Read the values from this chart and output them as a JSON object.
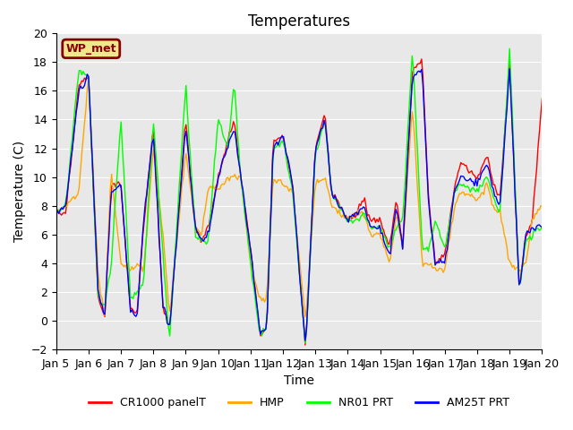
{
  "title": "Temperatures",
  "xlabel": "Time",
  "ylabel": "Temperature (C)",
  "ylim": [
    -2,
    20
  ],
  "yticks": [
    -2,
    0,
    2,
    4,
    6,
    8,
    10,
    12,
    14,
    16,
    18,
    20
  ],
  "xtick_labels": [
    "Jan 5",
    "Jan 6",
    "Jan 7",
    "Jan 8",
    "Jan 9",
    "Jan 10",
    "Jan 11",
    "Jan 12",
    "Jan 13",
    "Jan 14",
    "Jan 15",
    "Jan 16",
    "Jan 17",
    "Jan 18",
    "Jan 19",
    "Jan 20"
  ],
  "series_labels": [
    "CR1000 panelT",
    "HMP",
    "NR01 PRT",
    "AM25T PRT"
  ],
  "series_colors": [
    "red",
    "orange",
    "lime",
    "blue"
  ],
  "bg_color": "#e8e8e8",
  "annotation_text": "WP_met",
  "title_fontsize": 12,
  "axis_label_fontsize": 10,
  "tick_fontsize": 9,
  "n_days": 15,
  "n_per_day": 24,
  "t_key": [
    0,
    0.3,
    0.7,
    1.0,
    1.3,
    1.5,
    1.7,
    2.0,
    2.3,
    2.5,
    2.7,
    3.0,
    3.3,
    3.5,
    4.0,
    4.3,
    4.5,
    4.7,
    5.0,
    5.3,
    5.5,
    5.7,
    6.0,
    6.3,
    6.5,
    6.7,
    7.0,
    7.3,
    7.7,
    8.0,
    8.3,
    8.5,
    9.0,
    9.3,
    9.5,
    9.7,
    10.0,
    10.3,
    10.5,
    10.7,
    11.0,
    11.3,
    11.5,
    11.7,
    12.0,
    12.3,
    12.5,
    13.0,
    13.3,
    13.5,
    13.7,
    14.0,
    14.3,
    14.5,
    14.7,
    15.0
  ],
  "v_blue": [
    7.5,
    8,
    16,
    17,
    2,
    0.2,
    9,
    9.5,
    0.5,
    0.3,
    7,
    13,
    1,
    -0.5,
    13.5,
    6.5,
    5.5,
    6,
    10,
    12,
    13.5,
    10,
    5,
    -1,
    -0.5,
    12,
    13,
    9.5,
    -2,
    12,
    14,
    9,
    7,
    7.5,
    8,
    6.5,
    6.5,
    4.5,
    8,
    5,
    17,
    17.5,
    8,
    4,
    4,
    9,
    10,
    9.5,
    11,
    9,
    8,
    17.5,
    2,
    6,
    6.5,
    6.5
  ],
  "v_red": [
    7.5,
    7.5,
    16.5,
    17,
    1.5,
    0.2,
    9.5,
    9.5,
    0.8,
    0.5,
    6.5,
    13.5,
    1,
    -0.5,
    14,
    6.5,
    5.5,
    6.5,
    10,
    12.5,
    14,
    10,
    5,
    -1,
    -0.5,
    12.5,
    13,
    9.5,
    -2,
    12,
    14.5,
    9,
    7,
    7.5,
    8.5,
    7,
    7,
    5,
    8.5,
    5,
    17.5,
    18,
    8.5,
    4,
    4.5,
    9.5,
    11,
    10,
    11.5,
    9.5,
    8.5,
    18,
    2,
    6,
    7,
    15.5
  ],
  "v_orange": [
    7.5,
    8,
    9,
    17,
    3,
    0.2,
    10.5,
    4,
    3.5,
    4,
    3.5,
    12,
    6,
    0.3,
    12,
    6.5,
    6,
    9.5,
    9,
    10,
    10,
    10,
    4,
    1.5,
    1.5,
    10,
    9.5,
    9,
    0,
    9.5,
    10,
    8,
    7,
    7.5,
    7.5,
    6,
    6,
    4,
    7.5,
    5,
    15,
    4,
    4,
    3.5,
    3.5,
    8,
    9,
    8.5,
    9.5,
    8,
    7.5,
    4,
    3.5,
    4,
    7,
    8
  ],
  "v_green": [
    7.5,
    8,
    17.5,
    17,
    1.5,
    1,
    4,
    14,
    1.5,
    2,
    2.5,
    14,
    4.5,
    -1.5,
    16.5,
    6,
    5.5,
    5.5,
    14,
    12,
    16.5,
    10,
    4,
    -1,
    -0.5,
    12,
    12.5,
    9,
    -2,
    11.5,
    14,
    9,
    7,
    7,
    7.5,
    6.5,
    6.5,
    5,
    6.5,
    7,
    19,
    5,
    5,
    7,
    5,
    9,
    9.5,
    9,
    10,
    8.5,
    7.5,
    19,
    2,
    5.5,
    6,
    6.5
  ]
}
